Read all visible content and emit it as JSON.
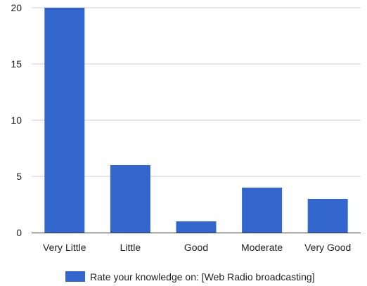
{
  "chart_data": {
    "type": "bar",
    "categories": [
      "Very Little",
      "Little",
      "Good",
      "Moderate",
      "Very Good"
    ],
    "series": [
      {
        "name": "Rate your knowledge on: [Web Radio broadcasting]",
        "values": [
          20,
          6,
          1,
          4,
          3
        ],
        "color": "#3366cc"
      }
    ],
    "y_ticks": [
      "0",
      "5",
      "10",
      "15",
      "20"
    ],
    "ylim": [
      0,
      20
    ],
    "grid": true,
    "legend_position": "bottom"
  }
}
